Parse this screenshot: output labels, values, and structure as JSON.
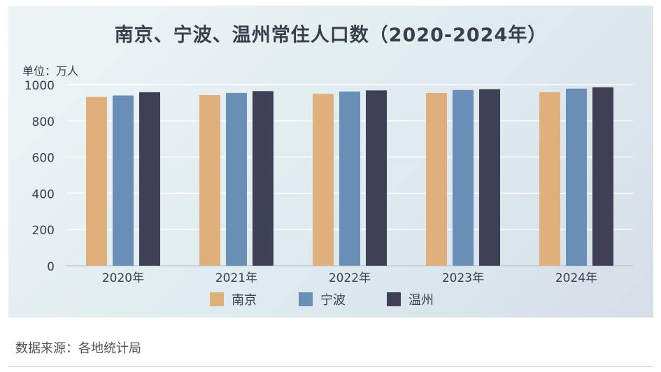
{
  "chart_data": {
    "type": "bar",
    "title": "南京、宁波、温州常住人口数（2020-2024年）",
    "unit_label": "单位：万人",
    "categories": [
      "2020年",
      "2021年",
      "2022年",
      "2023年",
      "2024年"
    ],
    "series": [
      {
        "name": "南京",
        "color": "#e0b07c",
        "values": [
          932,
          942,
          949,
          954,
          958
        ]
      },
      {
        "name": "宁波",
        "color": "#6a8fb7",
        "values": [
          940,
          954,
          962,
          970,
          978
        ]
      },
      {
        "name": "温州",
        "color": "#3f3f56",
        "values": [
          958,
          964,
          968,
          975,
          985
        ]
      }
    ],
    "yticks": [
      0,
      200,
      400,
      600,
      800,
      1000
    ],
    "ylim": [
      0,
      1000
    ],
    "grid": true,
    "legend_position": "bottom"
  },
  "footer": {
    "source": "数据来源：各地统计局"
  }
}
